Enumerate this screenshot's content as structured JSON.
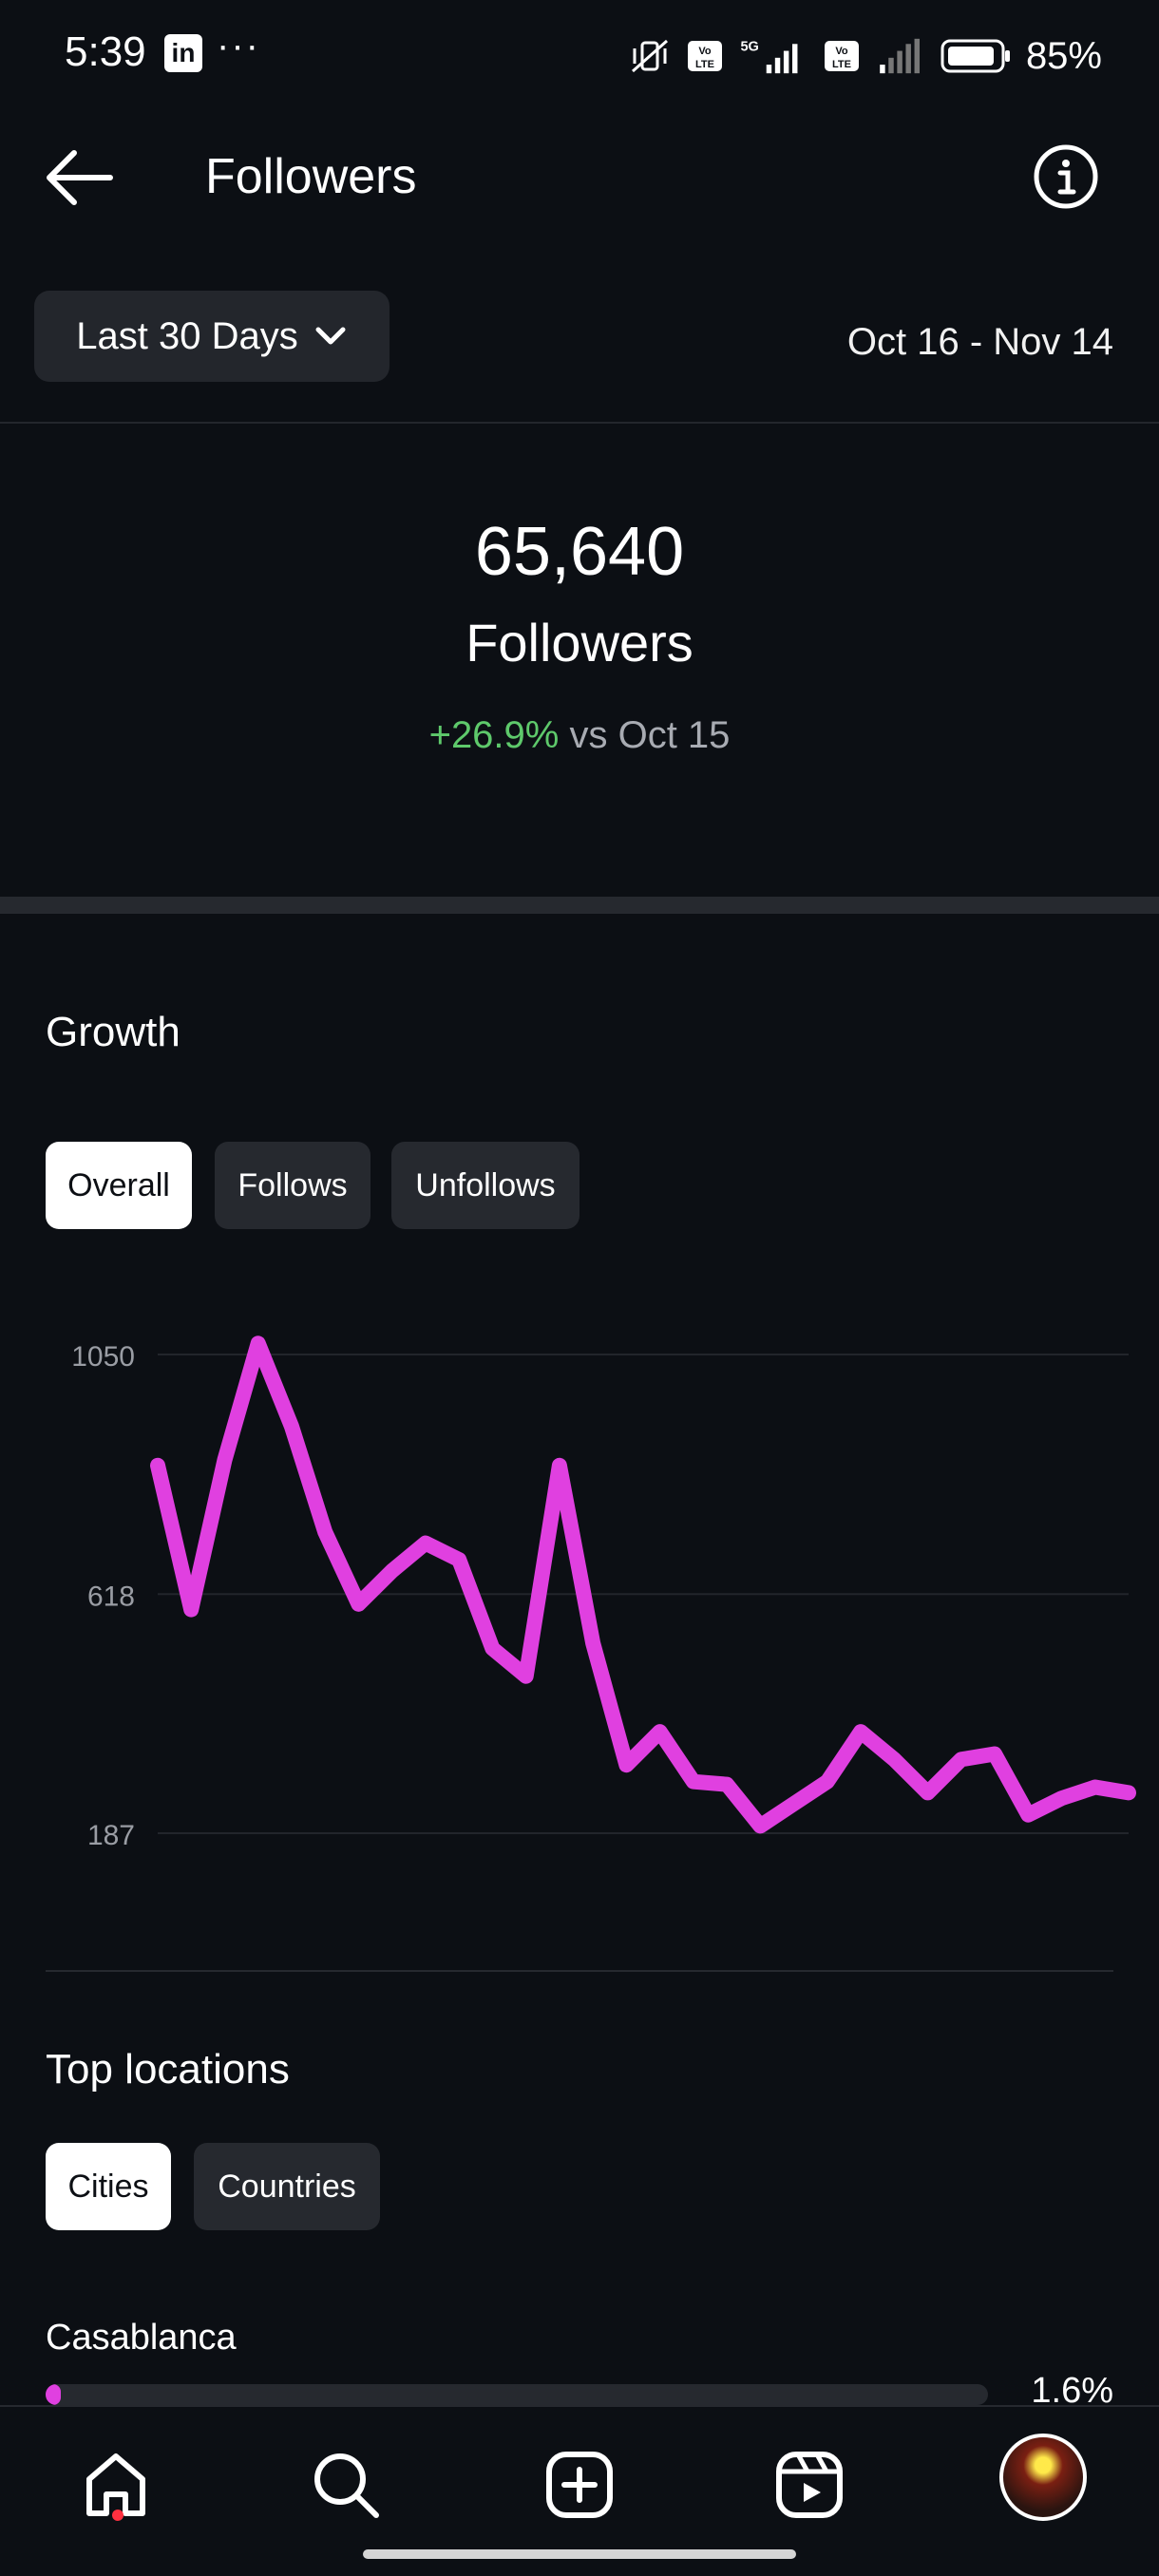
{
  "status_bar": {
    "time": "5:39",
    "linkedin_icon": "linkedin-icon",
    "more": "···",
    "network_label": "5G",
    "volte_label": "Vo LTE",
    "battery": "85%"
  },
  "header": {
    "title": "Followers",
    "back_icon": "arrow-left-icon",
    "info_icon": "info-icon"
  },
  "range": {
    "selected": "Last 30 Days",
    "dates": "Oct 16 - Nov 14"
  },
  "summary": {
    "count": "65,640",
    "label": "Followers",
    "change_pct": "+26.9%",
    "change_suffix": " vs Oct 15"
  },
  "growth": {
    "title": "Growth",
    "tabs": [
      {
        "label": "Overall",
        "active": true
      },
      {
        "label": "Follows",
        "active": false
      },
      {
        "label": "Unfollows",
        "active": false
      }
    ]
  },
  "chart_data": {
    "type": "line",
    "color": "#e040e0",
    "yticks": [
      1050,
      618,
      187
    ],
    "ylim": [
      187,
      1050
    ],
    "x": [
      1,
      2,
      3,
      4,
      5,
      6,
      7,
      8,
      9,
      10,
      11,
      12,
      13,
      14,
      15,
      16,
      17,
      18,
      19,
      20,
      21,
      22,
      23,
      24,
      25,
      26,
      27,
      28,
      29,
      30
    ],
    "series": [
      {
        "values": [
          850,
          590,
          860,
          1070,
          920,
          730,
          600,
          660,
          710,
          680,
          520,
          470,
          850,
          530,
          310,
          370,
          280,
          275,
          200,
          240,
          280,
          370,
          320,
          260,
          320,
          330,
          220,
          250,
          270,
          260
        ]
      }
    ],
    "grid": true,
    "legend": "none"
  },
  "locations": {
    "title": "Top locations",
    "tabs": [
      {
        "label": "Cities",
        "active": true
      },
      {
        "label": "Countries",
        "active": false
      }
    ],
    "items": [
      {
        "name": "Casablanca",
        "pct": "1.6%",
        "fraction": 0.016
      }
    ]
  },
  "nav": {
    "icons": [
      "home-icon",
      "search-icon",
      "create-icon",
      "reels-icon",
      "profile-avatar"
    ]
  }
}
